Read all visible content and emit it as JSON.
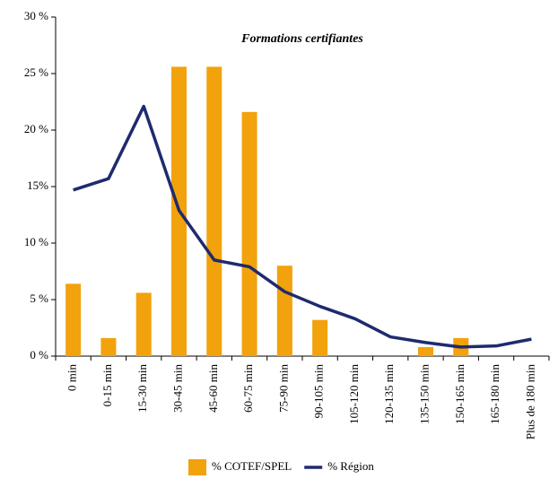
{
  "chart_data": {
    "type": "bar-line",
    "title": "Formations certifiantes",
    "categories": [
      "0 min",
      "0-15 min",
      "15-30 min",
      "30-45 min",
      "45-60 min",
      "60-75 min",
      "75-90 min",
      "90-105 min",
      "105-120 min",
      "120-135 min",
      "135-150 min",
      "150-165 min",
      "165-180 min",
      "Plus de 180 min"
    ],
    "series": [
      {
        "name": "% COTEF/SPEL",
        "type": "bar",
        "color": "#f2a20c",
        "values": [
          6.4,
          1.6,
          5.6,
          25.6,
          25.6,
          21.6,
          8.0,
          3.2,
          0,
          0,
          0.8,
          1.6,
          0,
          0
        ]
      },
      {
        "name": "% Région",
        "type": "line",
        "color": "#1f2a6e",
        "values": [
          14.7,
          15.7,
          22.1,
          12.9,
          8.5,
          7.9,
          5.7,
          4.4,
          3.3,
          1.7,
          1.2,
          0.8,
          0.9,
          1.5
        ]
      }
    ],
    "ylim": [
      0,
      30
    ],
    "yticks": [
      {
        "value": 0,
        "label": "0 %"
      },
      {
        "value": 5,
        "label": "5 %"
      },
      {
        "value": 10,
        "label": "10 %"
      },
      {
        "value": 15,
        "label": "15%"
      },
      {
        "value": 20,
        "label": "20 %"
      },
      {
        "value": 25,
        "label": "25 %"
      },
      {
        "value": 30,
        "label": "30 %"
      }
    ],
    "legend": "bottom"
  }
}
